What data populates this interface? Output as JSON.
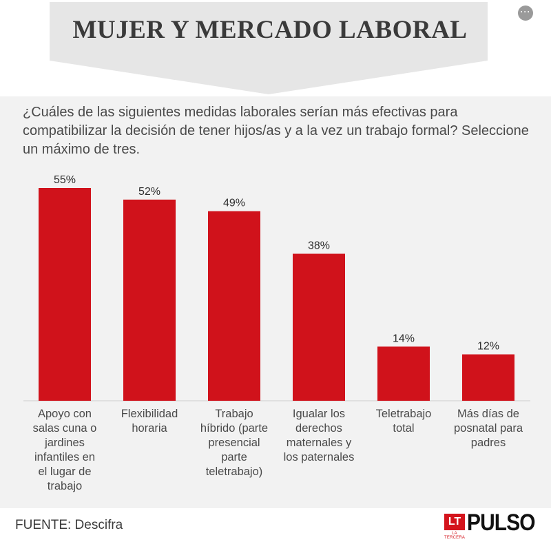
{
  "banner": {
    "title": "MUJER Y MERCADO LABORAL",
    "menu_icon": "ellipsis-icon",
    "menu_label": "···"
  },
  "question": "¿Cuáles de las siguientes medidas laborales serían más efectivas para compatibilizar la decisión de tener hijos/as y a la vez un trabajo formal? Seleccione un máximo de tres.",
  "colors": {
    "bar": "#d0121b",
    "banner": "#e6e6e6",
    "text": "#4a4a4a"
  },
  "chart_data": {
    "type": "bar",
    "title": "",
    "xlabel": "",
    "ylabel": "",
    "categories": [
      [
        "Apoyo con",
        "salas cuna o",
        "jardines",
        "infantiles en",
        "el lugar de",
        "trabajo"
      ],
      [
        "Flexibilidad",
        "horaria"
      ],
      [
        "Trabajo",
        "híbrido (parte",
        "presencial",
        "parte",
        "teletrabajo)"
      ],
      [
        "Igualar los",
        "derechos",
        "maternales y",
        "los paternales"
      ],
      [
        "Teletrabajo",
        "total"
      ],
      [
        "Más días de",
        "posnatal para",
        "padres"
      ]
    ],
    "values": [
      55,
      52,
      49,
      38,
      14,
      12
    ],
    "value_labels": [
      "55%",
      "52%",
      "49%",
      "38%",
      "14%",
      "12%"
    ],
    "ylim": [
      0,
      55
    ],
    "grid": false,
    "legend": "none"
  },
  "footer": {
    "source": "FUENTE: Descifra",
    "logo_lt": "LT",
    "logo_lt_sub": "LA TERCERA",
    "logo_pulso": "PULSO"
  }
}
